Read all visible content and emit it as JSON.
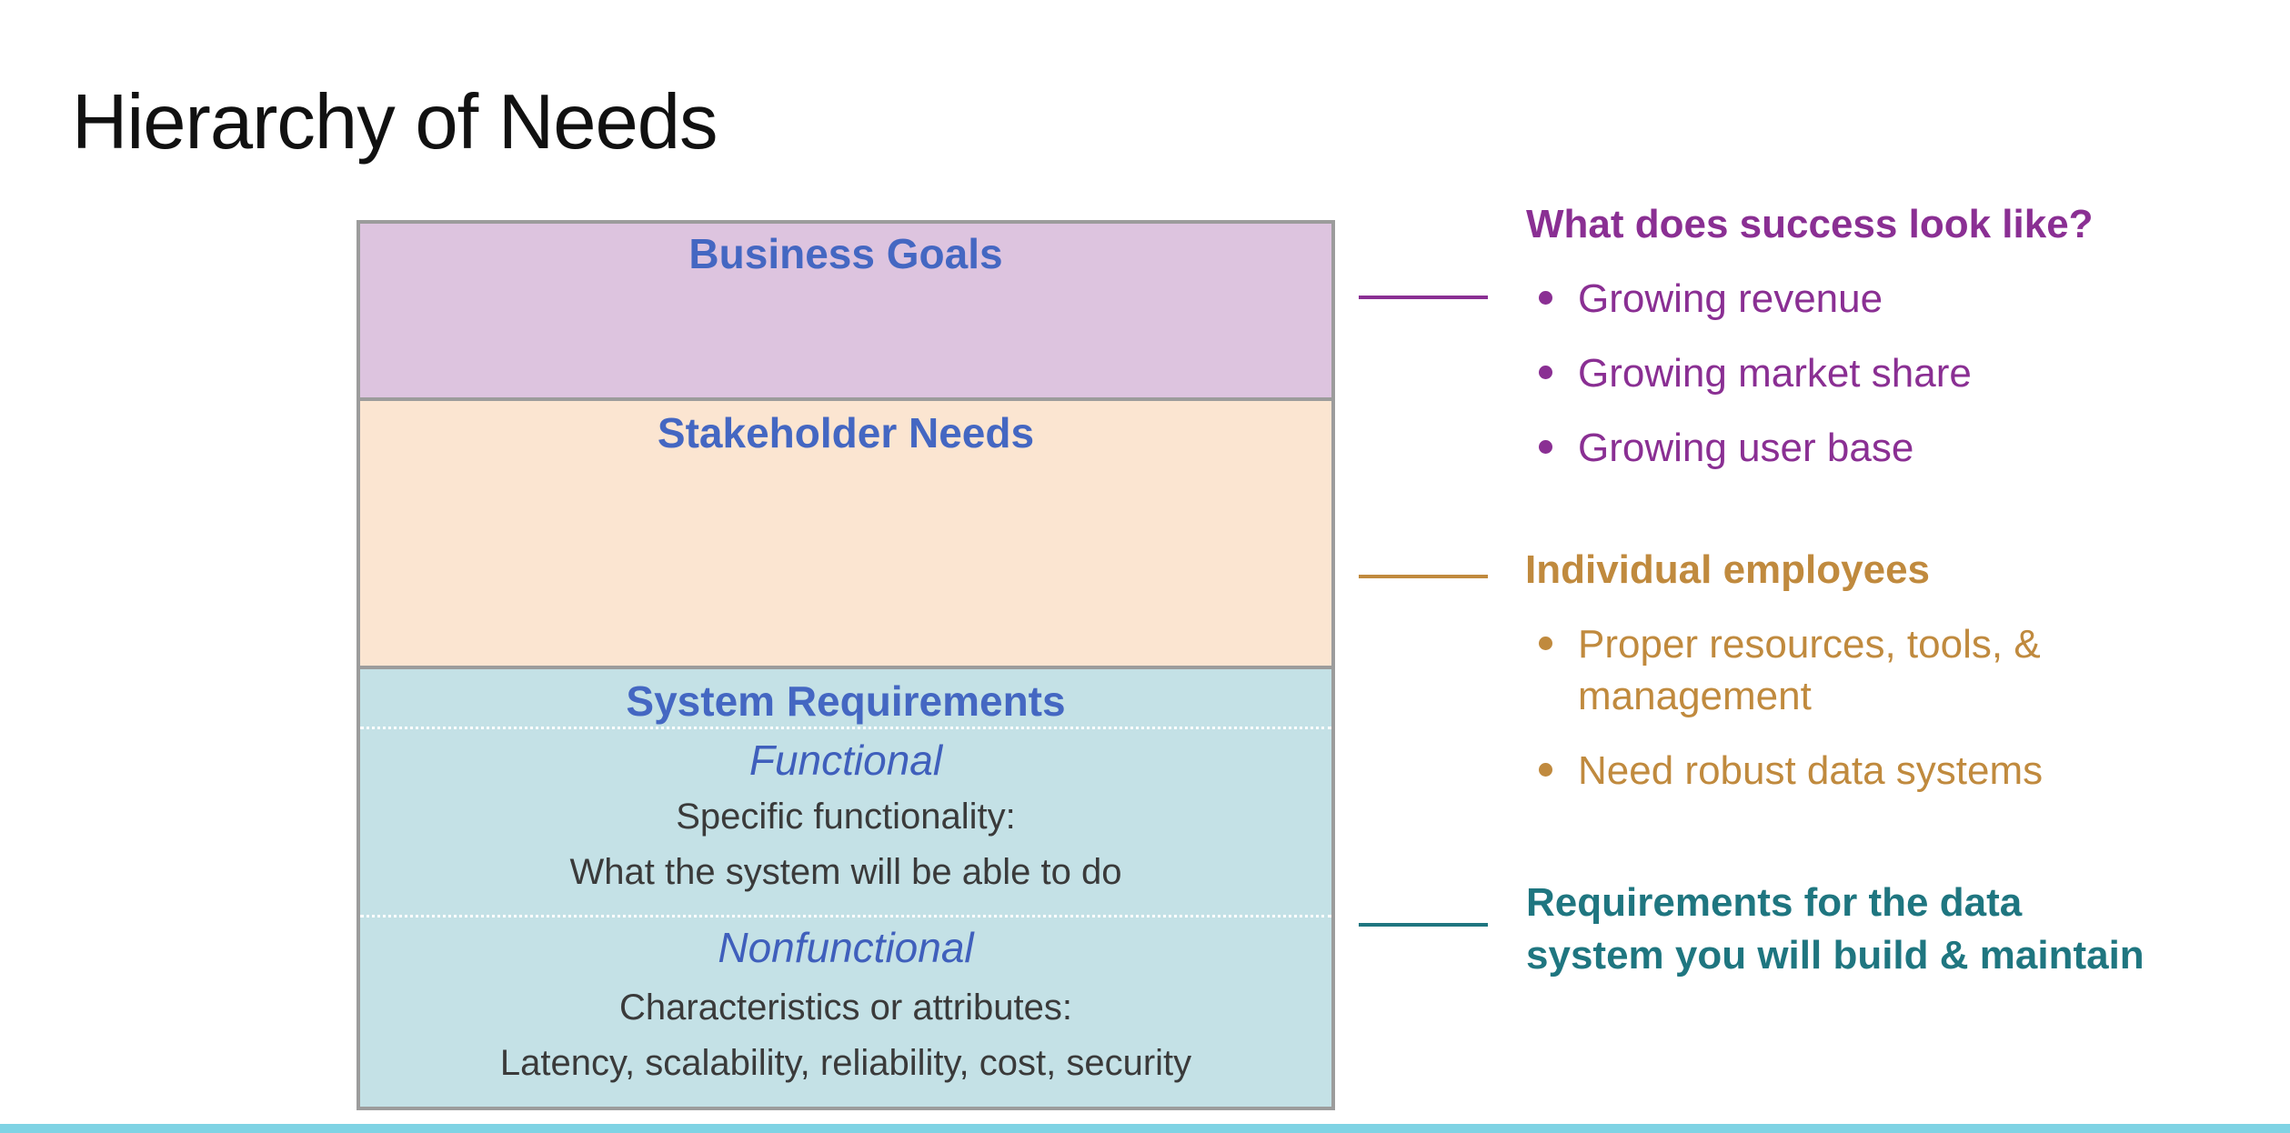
{
  "page": {
    "title": "Hierarchy of Needs"
  },
  "pyramid": {
    "business_goals": {
      "title": "Business Goals",
      "color": "#ddc4df"
    },
    "stakeholder_needs": {
      "title": "Stakeholder Needs",
      "color": "#fbe5d1"
    },
    "system_requirements": {
      "title": "System Requirements",
      "color": "#c4e1e6",
      "functional": {
        "heading": "Functional",
        "line1": "Specific functionality:",
        "line2": "What the system will be able to do"
      },
      "nonfunctional": {
        "heading": "Nonfunctional",
        "line1": "Characteristics or attributes:",
        "line2": "Latency, scalability, reliability, cost, security"
      }
    }
  },
  "annotations": {
    "business": {
      "heading": "What does success look like?",
      "color": "#8a2f93",
      "bullets": [
        "Growing revenue",
        "Growing market share",
        "Growing user base"
      ]
    },
    "stakeholder": {
      "heading": "Individual employees",
      "color": "#c08a3e",
      "bullets": [
        "Proper resources, tools, &",
        "management",
        "Need robust data systems"
      ]
    },
    "system": {
      "heading_line1": "Requirements for the data",
      "heading_line2": "system you will build & maintain",
      "color": "#1f7680"
    }
  }
}
